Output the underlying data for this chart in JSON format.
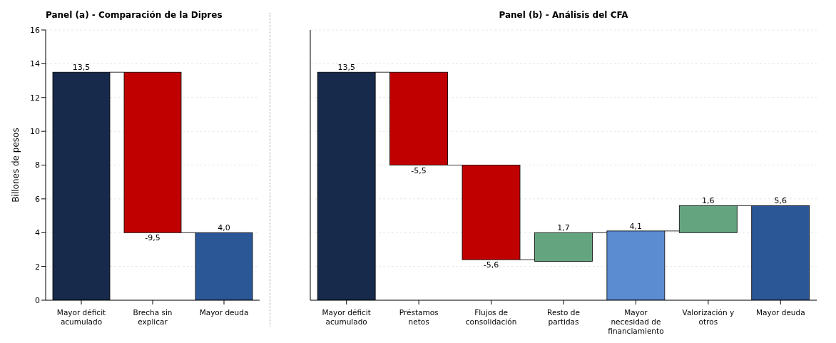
{
  "chart_data": [
    {
      "type": "bar",
      "title": "Panel (a) - Comparación de la Dipres",
      "ylabel": "Billones de pesos",
      "categories": [
        "Mayor déficit acumulado",
        "Brecha sin explicar",
        "Mayor deuda"
      ],
      "values": [
        13.5,
        -9.5,
        4.0
      ],
      "base": [
        0,
        13.5,
        0
      ],
      "colors": [
        "#172a4b",
        "#c00000",
        "#2b5797"
      ],
      "value_labels": [
        "13,5",
        "-9,5",
        "4,0"
      ],
      "ylim": [
        0,
        16
      ],
      "yticks": [
        0,
        2,
        4,
        6,
        8,
        10,
        12,
        14,
        16
      ],
      "grid": "y"
    },
    {
      "type": "bar",
      "title": "Panel (b) - Análisis del CFA",
      "categories": [
        "Mayor déficit acumulado",
        "Préstamos netos",
        "Flujos de consolidación",
        "Resto de partidas",
        "Mayor necesidad de financiamiento",
        "Valorización y otros",
        "Mayor deuda"
      ],
      "values": [
        13.5,
        -5.5,
        -5.6,
        1.7,
        4.1,
        1.6,
        5.6
      ],
      "base": [
        0,
        13.5,
        8.0,
        2.3,
        0,
        4.0,
        0
      ],
      "colors": [
        "#172a4b",
        "#c00000",
        "#c00000",
        "#64a57f",
        "#5b8bd0",
        "#64a57f",
        "#2b5797"
      ],
      "value_labels": [
        "13,5",
        "-5,5",
        "-5,6",
        "1,7",
        "4,1",
        "1,6",
        "5,6"
      ],
      "ylim": [
        0,
        16
      ],
      "yticks": [
        0,
        2,
        4,
        6,
        8,
        10,
        12,
        14,
        16
      ],
      "grid": "y",
      "tick_labels": "x"
    }
  ]
}
